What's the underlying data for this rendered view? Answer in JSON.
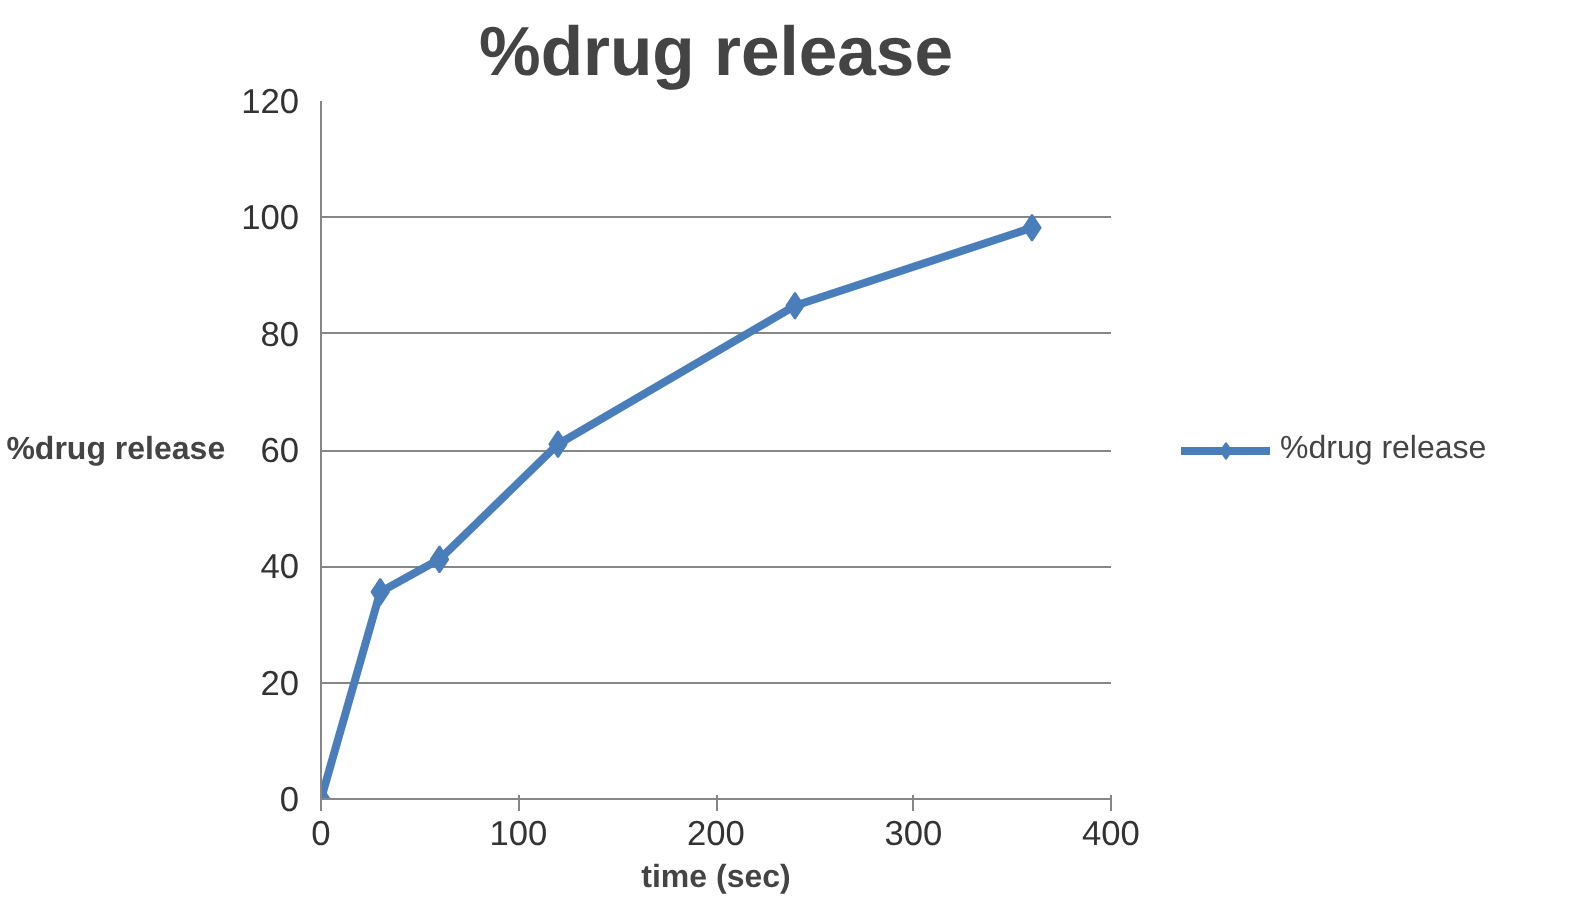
{
  "chart_data": {
    "type": "line",
    "title": "%drug release",
    "xlabel": "time (sec)",
    "ylabel": "%drug release",
    "x": [
      0,
      30,
      60,
      120,
      240,
      360
    ],
    "series": [
      {
        "name": "%drug release",
        "color": "#4a7ebb",
        "values": [
          0,
          35.6,
          41.2,
          61,
          84.8,
          98.2
        ]
      }
    ],
    "xlim": [
      0,
      400
    ],
    "xticks": [
      0,
      100,
      200,
      300,
      400
    ],
    "ylim": [
      0,
      120
    ],
    "yticks": [
      0,
      20,
      40,
      60,
      80,
      100,
      120
    ],
    "grid": "y",
    "legend": "right",
    "marker": "diamond",
    "line_style": "solid"
  }
}
